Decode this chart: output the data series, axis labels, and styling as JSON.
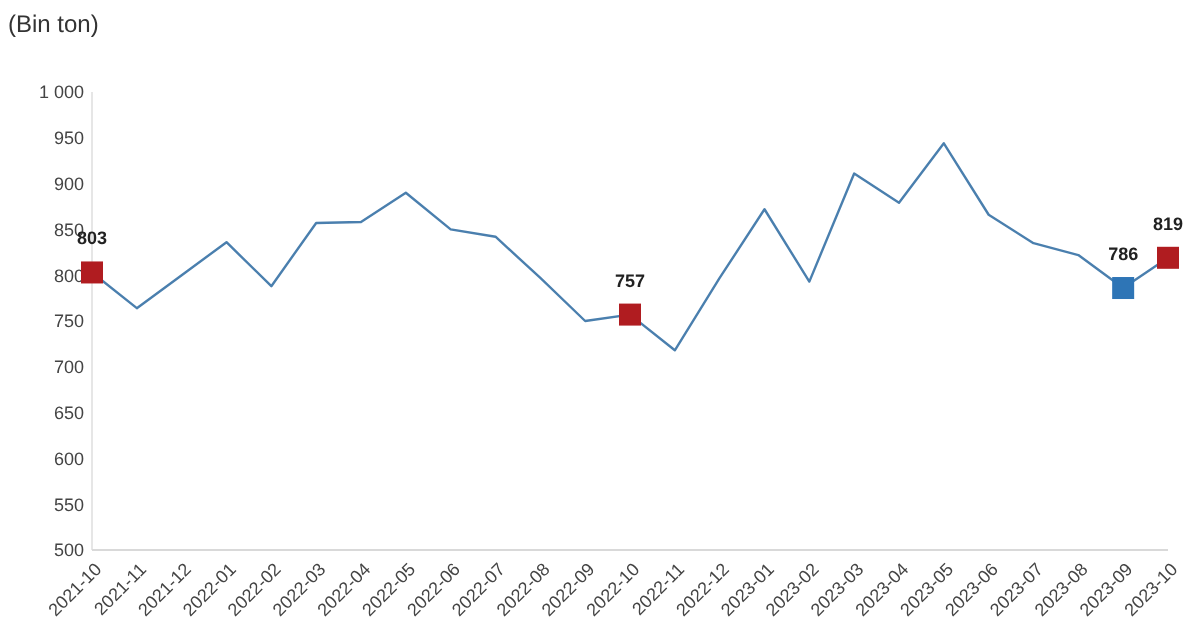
{
  "chart_data": {
    "type": "line",
    "ylabel": "(Bin ton)",
    "categories": [
      "2021-10",
      "2021-11",
      "2021-12",
      "2022-01",
      "2022-02",
      "2022-03",
      "2022-04",
      "2022-05",
      "2022-06",
      "2022-07",
      "2022-08",
      "2022-09",
      "2022-10",
      "2022-11",
      "2022-12",
      "2023-01",
      "2023-02",
      "2023-03",
      "2023-04",
      "2023-05",
      "2023-06",
      "2023-07",
      "2023-08",
      "2023-09",
      "2023-10"
    ],
    "series": [
      {
        "color": "#4a7fae",
        "marker": "none",
        "values": [
          803,
          764,
          800,
          836,
          788,
          857,
          858,
          890,
          850,
          842,
          797,
          750,
          757,
          718,
          797,
          872,
          793,
          911,
          879,
          944,
          866,
          835,
          822,
          786,
          819
        ]
      },
      {
        "type": "scatter",
        "marker": "square",
        "values": [
          803,
          null,
          null,
          null,
          null,
          null,
          null,
          null,
          null,
          null,
          null,
          null,
          757,
          null,
          null,
          null,
          null,
          null,
          null,
          null,
          null,
          null,
          null,
          786,
          819
        ],
        "colors": [
          "#b01c20",
          null,
          null,
          null,
          null,
          null,
          null,
          null,
          null,
          null,
          null,
          null,
          "#b01c20",
          null,
          null,
          null,
          null,
          null,
          null,
          null,
          null,
          null,
          null,
          "#2e75b6",
          "#b01c20"
        ],
        "value_labels": [
          "803",
          null,
          null,
          null,
          null,
          null,
          null,
          null,
          null,
          null,
          null,
          null,
          "757",
          null,
          null,
          null,
          null,
          null,
          null,
          null,
          null,
          null,
          null,
          "786",
          "819"
        ]
      }
    ],
    "ylim": [
      500,
      1000
    ],
    "yticks": [
      500,
      550,
      600,
      650,
      700,
      750,
      800,
      850,
      900,
      950,
      {
        "value": 1000,
        "label": "1 000"
      }
    ],
    "grid": false
  }
}
